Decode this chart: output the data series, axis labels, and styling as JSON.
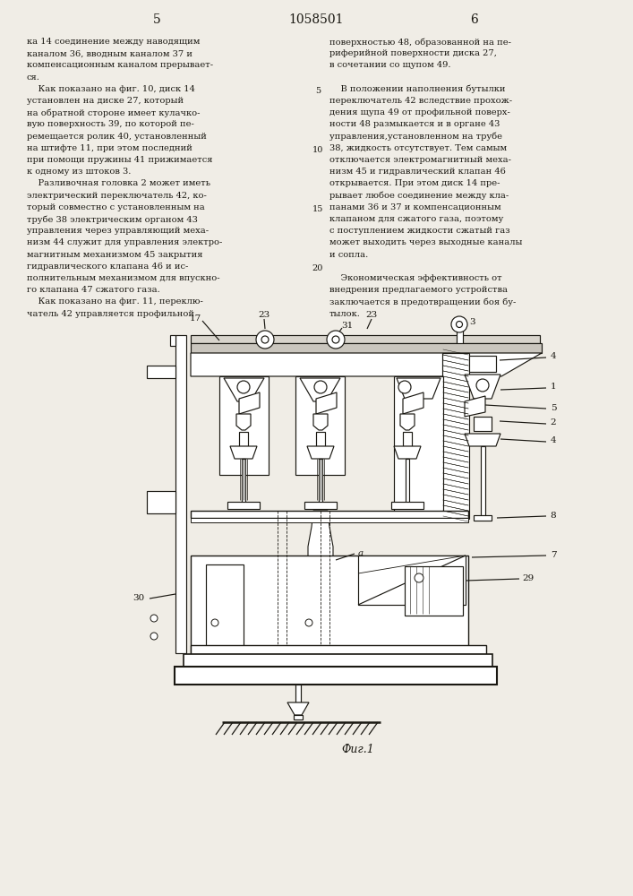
{
  "page_width": 7.07,
  "page_height": 10.0,
  "bg_color": "#f0ede6",
  "text_color": "#1a1812",
  "header_number": "1058501",
  "left_page_num": "5",
  "right_page_num": "6",
  "fig_caption": "Фuг.1",
  "left_col_lines": [
    "ка 14 соединение между наводящим",
    "каналом 36, вводным каналом 37 и",
    "компенсационным каналом прерывает-",
    "ся.",
    "    Как показано на фиг. 10, диск 14",
    "установлен на диске 27, который",
    "на обратной стороне имеет кулачко-",
    "вую поверхность 39, по которой пе-",
    "ремещается ролик 40, установленный",
    "на штифте 11, при этом последний",
    "при помощи пружины 41 прижимается",
    "к одному из штоков 3.",
    "    Разливочная головка 2 может иметь",
    "электрический переключатель 42, ко-",
    "торый совместно с установленным на",
    "трубе 38 электрическим органом 43",
    "управления через управляющий меха-",
    "низм 44 служит для управления электро-",
    "магнитным механизмом 45 закрытия",
    "гидравлического клапана 46 и ис-",
    "полнительным механизмом для впускно-",
    "го клапана 47 сжатого газа.",
    "    Как показано на фиг. 11, переклю-",
    "чатель 42 управляется профильной"
  ],
  "right_col_lines": [
    "поверхностью 48, образованной на пе-",
    "риферийной поверхности диска 27,",
    "в сочетании со щупом 49.",
    "",
    "    В положении наполнения бутылки",
    "переключатель 42 вследствие прохож-",
    "дения щупа 49 от профильной поверх-",
    "ности 48 размыкается и в органе 43",
    "управления,установленном на трубе",
    "38, жидкость отсутствует. Тем самым",
    "отключается электромагнитный меха-",
    "низм 45 и гидравлический клапан 46",
    "открывается. При этом диск 14 пре-",
    "рывает любое соединение между кла-",
    "панами 36 и 37 и компенсационным",
    "клапаном для сжатого газа, поэтому",
    "с поступлением жидкости сжатый газ",
    "может выходить через выходные каналы",
    "и сопла.",
    "",
    "    Экономическая эффективность от",
    "внедрения предлагаемого устройства",
    "заключается в предотвращении боя бу-",
    "тылок."
  ],
  "line_numbers_at": [
    4,
    9,
    14,
    19
  ],
  "line_number_vals": [
    "5",
    "10",
    "15",
    "20"
  ]
}
